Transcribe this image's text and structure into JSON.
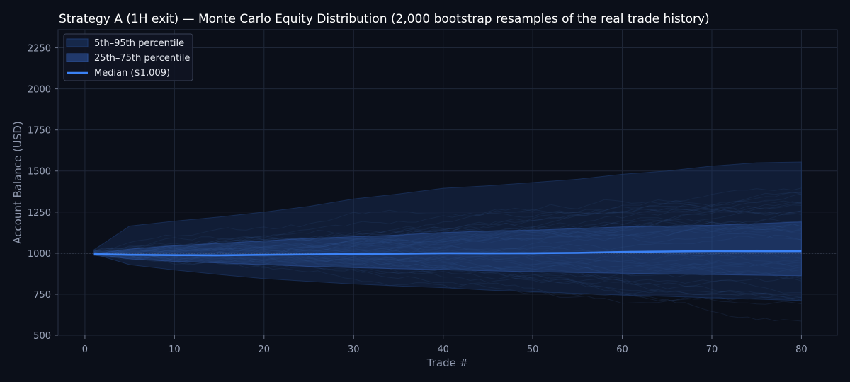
{
  "chart_data": {
    "type": "area",
    "title": "Strategy A (1H exit) — Monte Carlo Equity Distribution (2,000 bootstrap resamples of the real trade history)",
    "xlabel": "Trade #",
    "ylabel": "Account Balance (USD)",
    "xlim": [
      -3,
      84
    ],
    "ylim": [
      500,
      2360
    ],
    "xticks": [
      "0",
      "10",
      "20",
      "30",
      "40",
      "50",
      "60",
      "70",
      "80"
    ],
    "yticks": [
      "500",
      "750",
      "1000",
      "1250",
      "1500",
      "1750",
      "2000",
      "2250"
    ],
    "grid": true,
    "reference_line": 1000,
    "legend": {
      "position": "top-left",
      "entries": [
        "5th–95th percentile",
        "25th–75th percentile",
        "Median ($1,009)"
      ]
    },
    "colors": {
      "background": "#0b0f19",
      "median": "#3b82f6",
      "band_outer": "#1e3a6e",
      "band_inner": "#2b4f95",
      "paths": "#4a6fb5"
    },
    "x": [
      1,
      5,
      10,
      15,
      20,
      25,
      30,
      35,
      40,
      45,
      50,
      55,
      60,
      65,
      70,
      75,
      80
    ],
    "series": [
      {
        "name": "Median ($1,009)",
        "values": [
          995,
          990,
          988,
          987,
          990,
          992,
          996,
          997,
          1000,
          999,
          1000,
          1002,
          1007,
          1010,
          1013,
          1012,
          1012
        ]
      },
      {
        "name": "25th percentile",
        "values": [
          995,
          965,
          950,
          940,
          930,
          920,
          912,
          905,
          900,
          893,
          887,
          882,
          878,
          873,
          870,
          866,
          863
        ]
      },
      {
        "name": "75th percentile",
        "values": [
          995,
          1025,
          1045,
          1060,
          1075,
          1090,
          1100,
          1110,
          1125,
          1135,
          1140,
          1150,
          1160,
          1165,
          1170,
          1180,
          1190
        ]
      },
      {
        "name": "5th percentile",
        "values": [
          995,
          930,
          898,
          870,
          845,
          828,
          812,
          800,
          790,
          775,
          765,
          755,
          745,
          737,
          728,
          720,
          712
        ]
      },
      {
        "name": "95th percentile",
        "values": [
          1020,
          1165,
          1195,
          1220,
          1250,
          1285,
          1330,
          1360,
          1395,
          1410,
          1430,
          1450,
          1480,
          1500,
          1530,
          1550,
          1555
        ]
      }
    ]
  }
}
